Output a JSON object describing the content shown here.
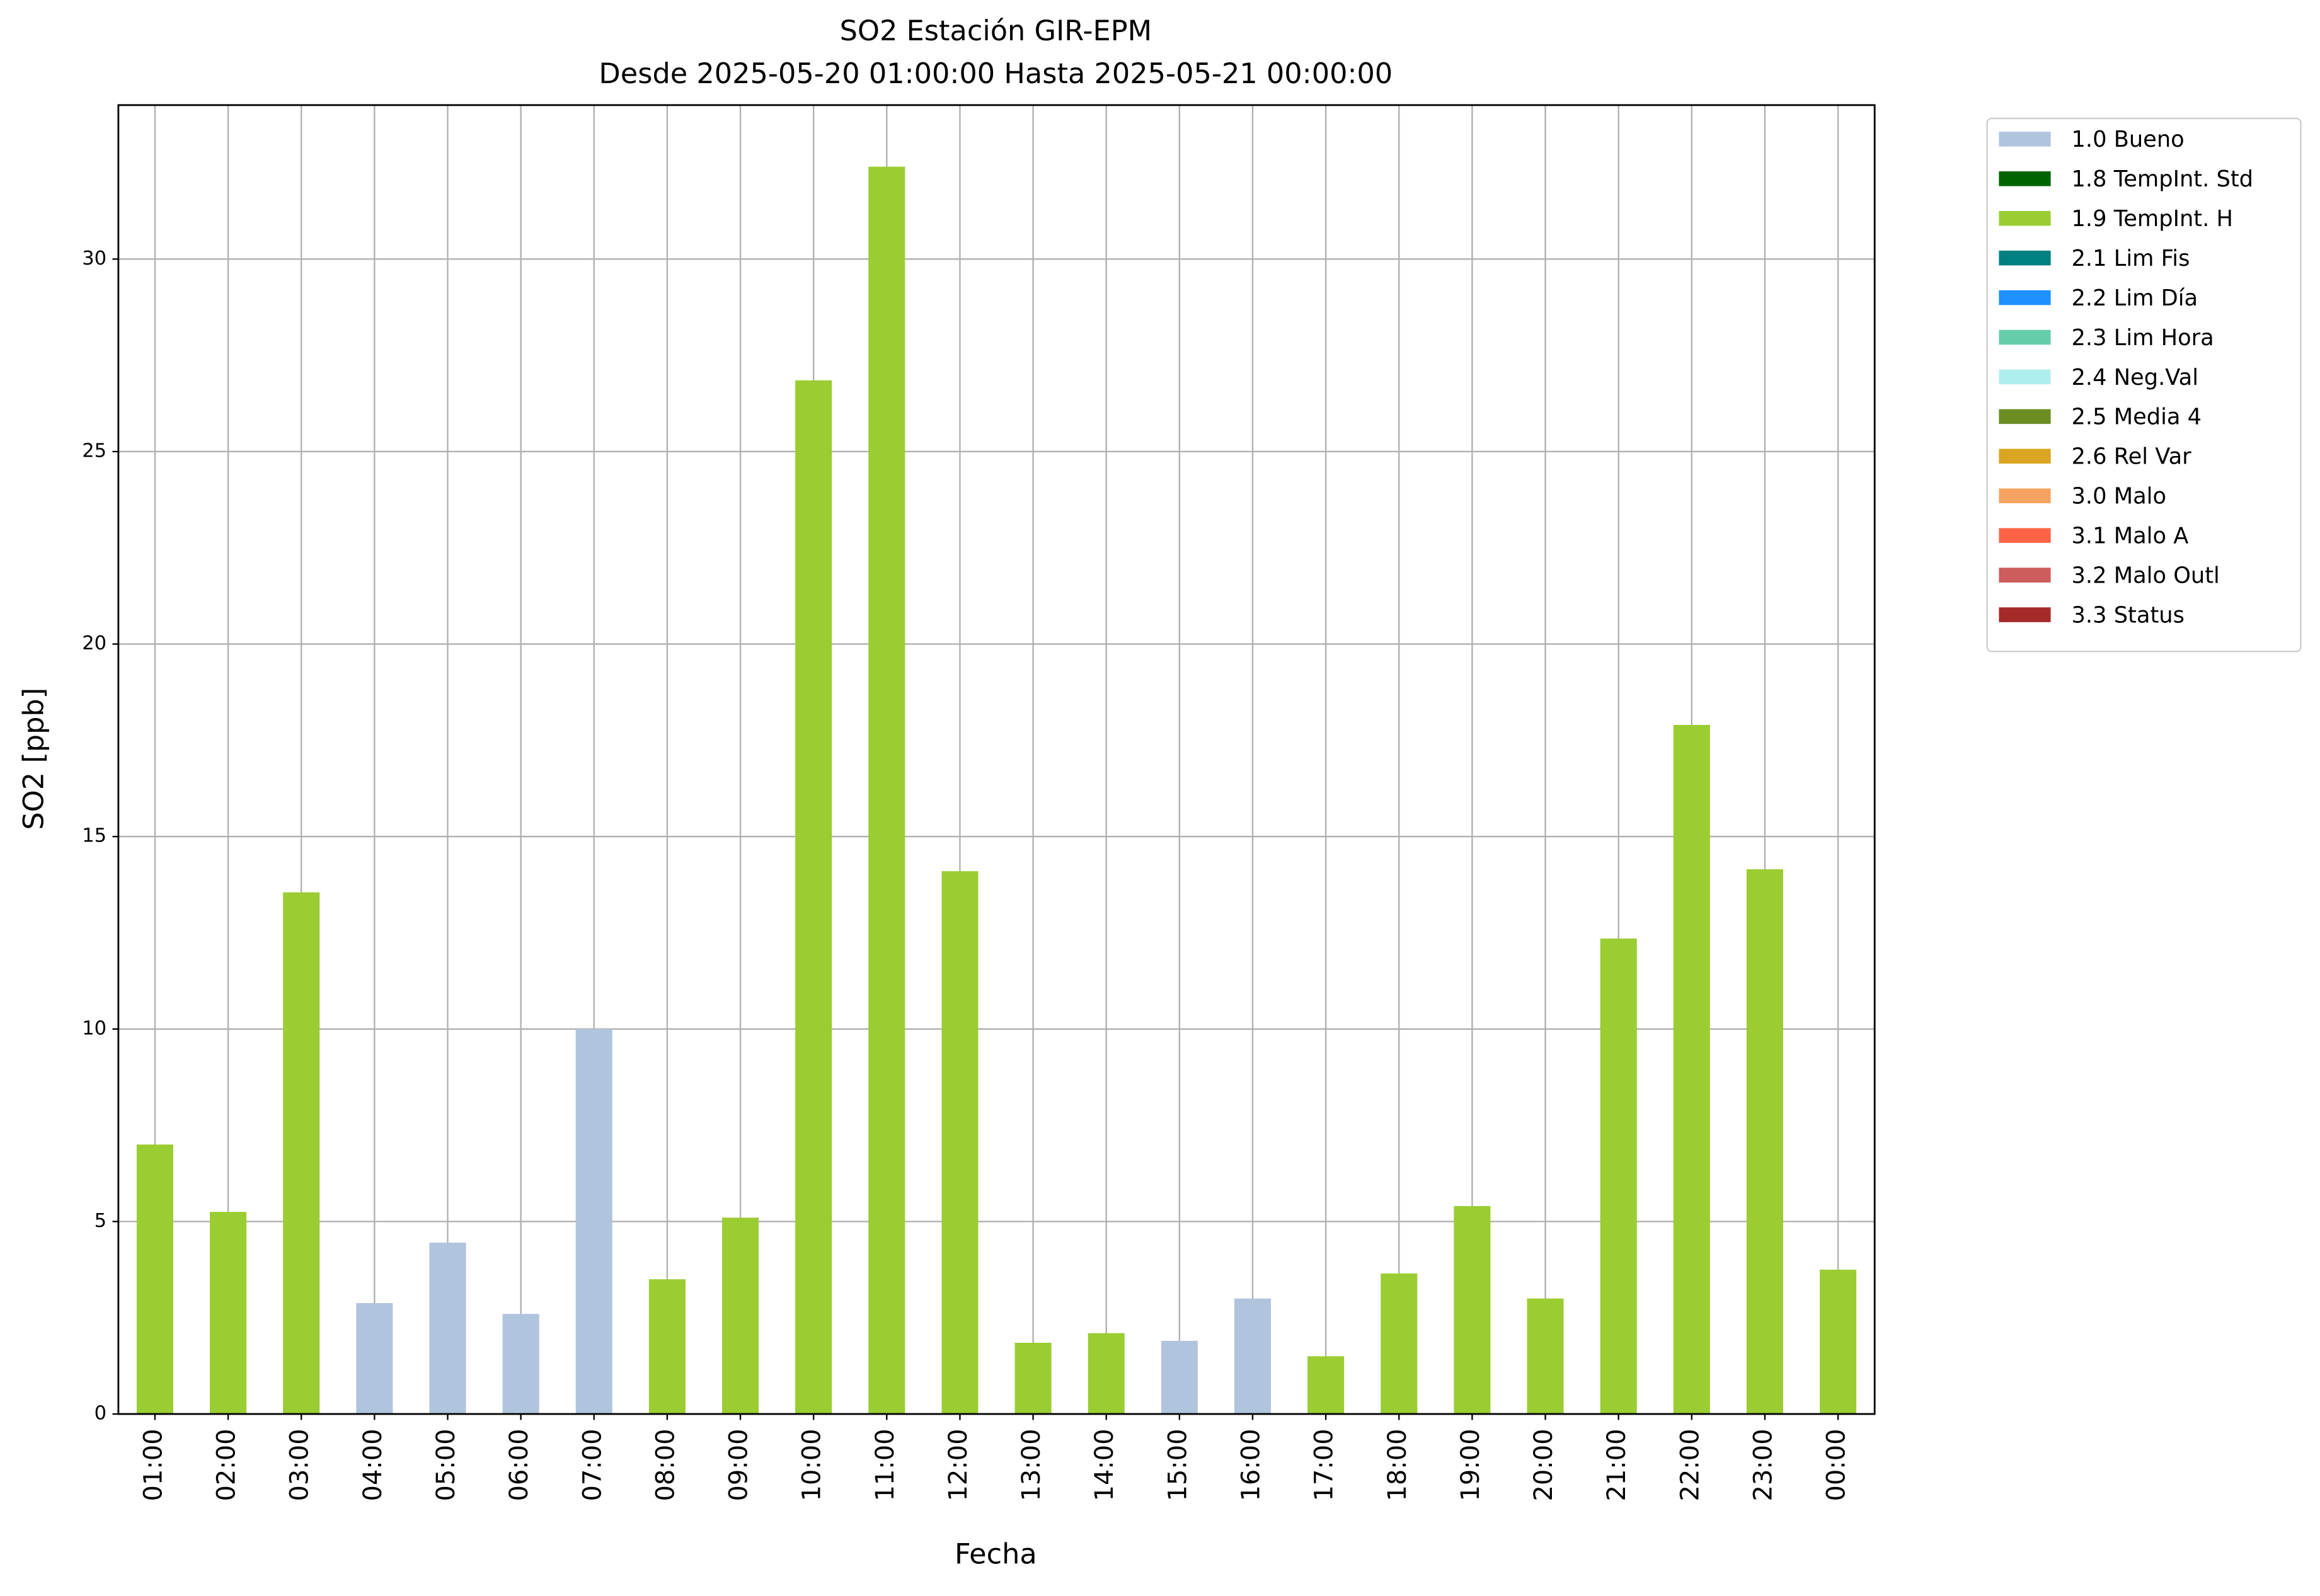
{
  "chart_data": {
    "type": "stacked_bar",
    "title": "SO2 Estación GIR-EPM",
    "subtitle": "Desde 2025-05-20 01:00:00 Hasta 2025-05-21 00:00:00",
    "x_label": "Fecha",
    "y_label": "SO2 [ppb]",
    "categories": [
      "01:00",
      "02:00",
      "03:00",
      "04:00",
      "05:00",
      "06:00",
      "07:00",
      "08:00",
      "09:00",
      "10:00",
      "11:00",
      "12:00",
      "13:00",
      "14:00",
      "15:00",
      "16:00",
      "17:00",
      "18:00",
      "19:00",
      "20:00",
      "21:00",
      "22:00",
      "23:00",
      "00:00"
    ],
    "series": [
      {
        "name": "1.0 Bueno",
        "color": "#b0c4de",
        "values": [
          null,
          null,
          null,
          2.88,
          4.45,
          2.6,
          10.0,
          null,
          null,
          null,
          null,
          null,
          null,
          null,
          1.9,
          3.0,
          null,
          null,
          null,
          null,
          null,
          null,
          null,
          null
        ]
      },
      {
        "name": "1.8 TempInt. Std",
        "color": "#006400",
        "values": [
          null,
          null,
          null,
          null,
          null,
          null,
          null,
          null,
          null,
          null,
          null,
          null,
          null,
          null,
          null,
          null,
          null,
          null,
          null,
          null,
          null,
          null,
          null,
          null
        ]
      },
      {
        "name": "1.9 TempInt. H",
        "color": "#9acd32",
        "values": [
          7.0,
          5.25,
          13.55,
          null,
          null,
          null,
          null,
          3.5,
          5.1,
          26.85,
          32.4,
          14.1,
          1.85,
          2.1,
          null,
          null,
          1.5,
          3.65,
          5.4,
          3.0,
          12.35,
          17.9,
          14.15,
          3.75
        ]
      },
      {
        "name": "2.1 Lim Fis",
        "color": "#008080",
        "values": [
          null,
          null,
          null,
          null,
          null,
          null,
          null,
          null,
          null,
          null,
          null,
          null,
          null,
          null,
          null,
          null,
          null,
          null,
          null,
          null,
          null,
          null,
          null,
          null
        ]
      },
      {
        "name": "2.2 Lim Día",
        "color": "#1e90ff",
        "values": [
          null,
          null,
          null,
          null,
          null,
          null,
          null,
          null,
          null,
          null,
          null,
          null,
          null,
          null,
          null,
          null,
          null,
          null,
          null,
          null,
          null,
          null,
          null,
          null
        ]
      },
      {
        "name": "2.3 Lim Hora",
        "color": "#66cdaa",
        "values": [
          null,
          null,
          null,
          null,
          null,
          null,
          null,
          null,
          null,
          null,
          null,
          null,
          null,
          null,
          null,
          null,
          null,
          null,
          null,
          null,
          null,
          null,
          null,
          null
        ]
      },
      {
        "name": "2.4 Neg.Val",
        "color": "#afeeee",
        "values": [
          null,
          null,
          null,
          null,
          null,
          null,
          null,
          null,
          null,
          null,
          null,
          null,
          null,
          null,
          null,
          null,
          null,
          null,
          null,
          null,
          null,
          null,
          null,
          null
        ]
      },
      {
        "name": "2.5 Media 4",
        "color": "#6b8e23",
        "values": [
          null,
          null,
          null,
          null,
          null,
          null,
          null,
          null,
          null,
          null,
          null,
          null,
          null,
          null,
          null,
          null,
          null,
          null,
          null,
          null,
          null,
          null,
          null,
          null
        ]
      },
      {
        "name": "2.6 Rel Var",
        "color": "#daa520",
        "values": [
          null,
          null,
          null,
          null,
          null,
          null,
          null,
          null,
          null,
          null,
          null,
          null,
          null,
          null,
          null,
          null,
          null,
          null,
          null,
          null,
          null,
          null,
          null,
          null
        ]
      },
      {
        "name": "3.0 Malo",
        "color": "#f4a460",
        "values": [
          null,
          null,
          null,
          null,
          null,
          null,
          null,
          null,
          null,
          null,
          null,
          null,
          null,
          null,
          null,
          null,
          null,
          null,
          null,
          null,
          null,
          null,
          null,
          null
        ]
      },
      {
        "name": "3.1 Malo A",
        "color": "#ff6347",
        "values": [
          null,
          null,
          null,
          null,
          null,
          null,
          null,
          null,
          null,
          null,
          null,
          null,
          null,
          null,
          null,
          null,
          null,
          null,
          null,
          null,
          null,
          null,
          null,
          null
        ]
      },
      {
        "name": "3.2 Malo Outl",
        "color": "#cd5c5c",
        "values": [
          null,
          null,
          null,
          null,
          null,
          null,
          null,
          null,
          null,
          null,
          null,
          null,
          null,
          null,
          null,
          null,
          null,
          null,
          null,
          null,
          null,
          null,
          null,
          null
        ]
      },
      {
        "name": "3.3 Status",
        "color": "#a52a2a",
        "values": [
          null,
          null,
          null,
          null,
          null,
          null,
          null,
          null,
          null,
          null,
          null,
          null,
          null,
          null,
          null,
          null,
          null,
          null,
          null,
          null,
          null,
          null,
          null,
          null
        ]
      }
    ],
    "ylim": [
      0,
      34
    ],
    "yticks": [
      0,
      5,
      10,
      15,
      20,
      25,
      30
    ],
    "grid": true,
    "legend": "outside-right"
  }
}
